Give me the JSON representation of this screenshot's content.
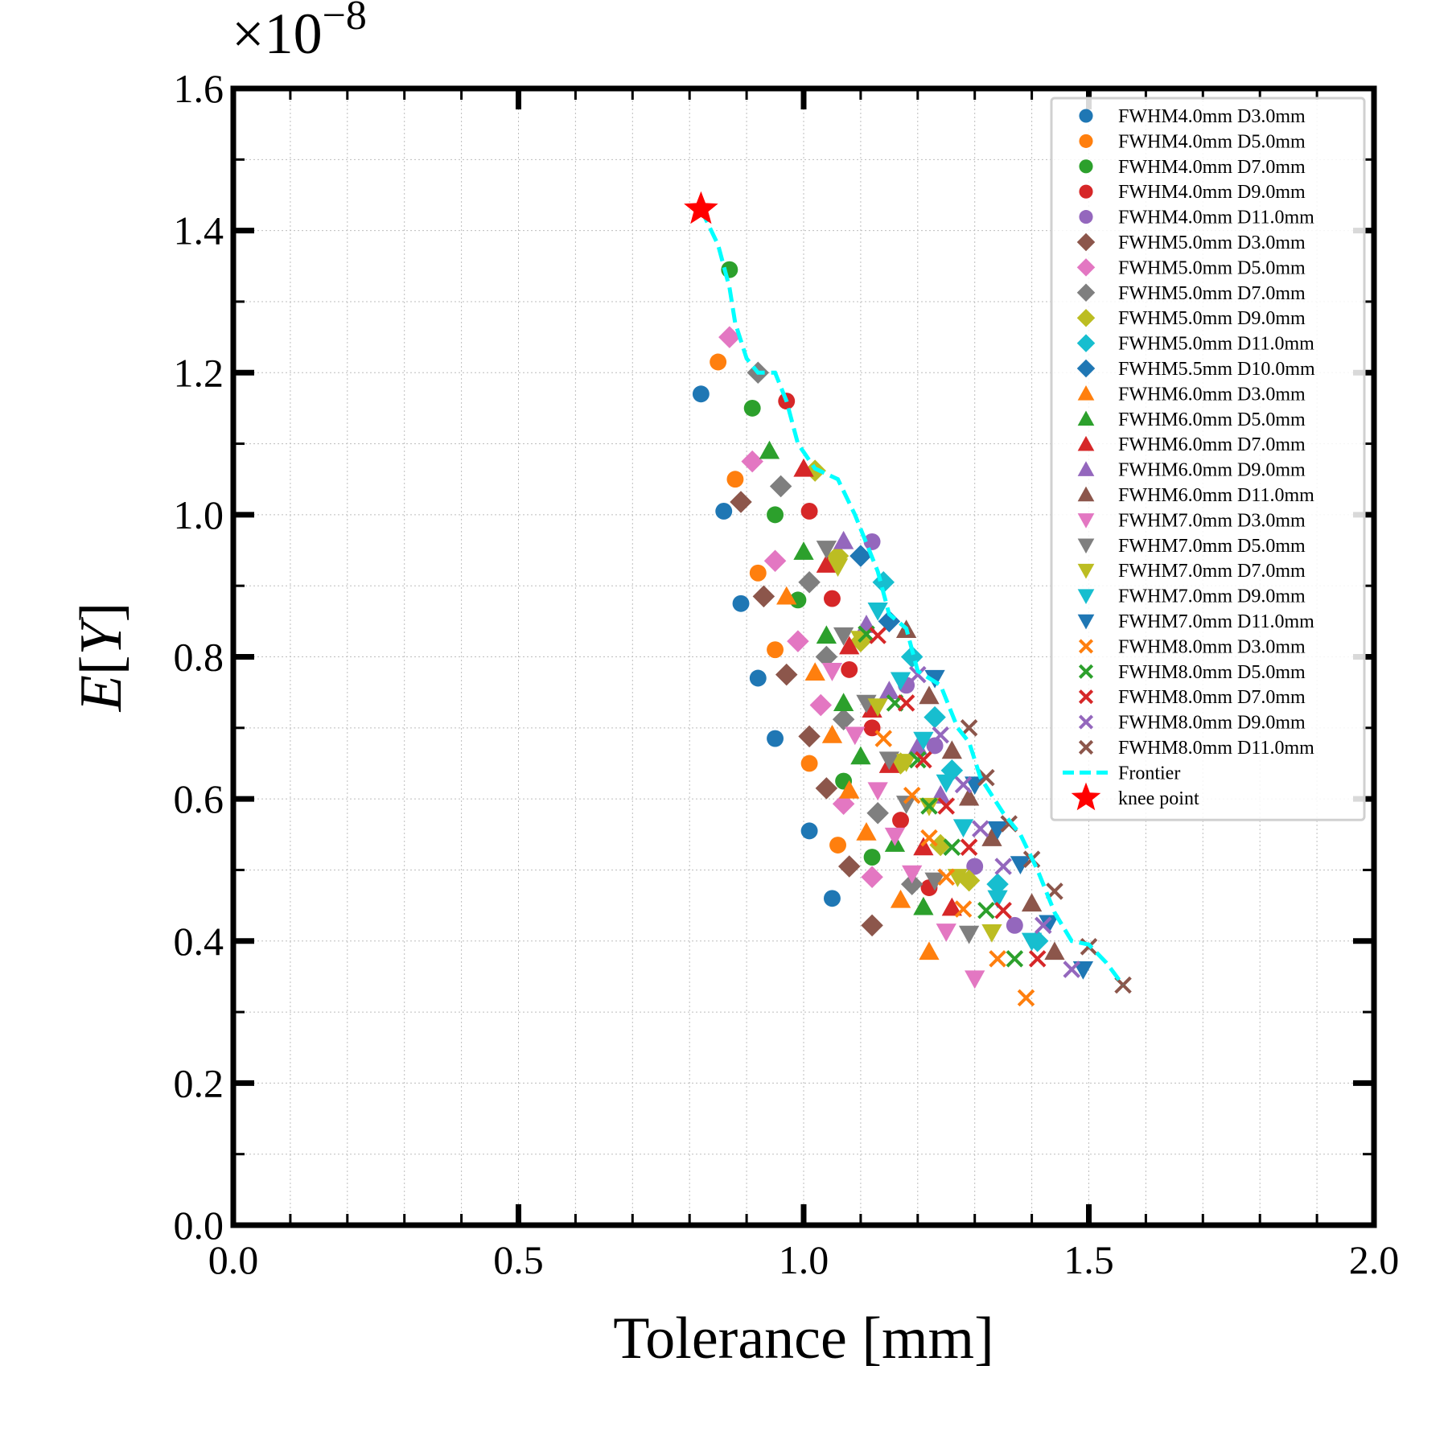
{
  "chart_data": {
    "type": "scatter",
    "title": "",
    "xlabel": "Tolerance [mm]",
    "ylabel": "E[Y]",
    "y_offset_text": {
      "base": "×10",
      "exponent": "−8"
    },
    "xlim": [
      0.0,
      2.0
    ],
    "ylim": [
      0.0,
      1.6
    ],
    "x_ticks": [
      "0.0",
      "0.5",
      "1.0",
      "1.5",
      "2.0"
    ],
    "y_ticks": [
      "0.0",
      "0.2",
      "0.4",
      "0.6",
      "0.8",
      "1.0",
      "1.2",
      "1.4",
      "1.6"
    ],
    "grid": true,
    "legend_position": "top-right",
    "series": [
      {
        "name": "FWHM4.0mm D3.0mm",
        "marker": "circle",
        "color": "#1f77b4",
        "points": [
          [
            0.82,
            1.17
          ],
          [
            0.86,
            1.005
          ],
          [
            0.89,
            0.875
          ],
          [
            0.92,
            0.77
          ],
          [
            0.95,
            0.685
          ],
          [
            1.01,
            0.555
          ],
          [
            1.05,
            0.46
          ]
        ]
      },
      {
        "name": "FWHM4.0mm D5.0mm",
        "marker": "circle",
        "color": "#ff7f0e",
        "points": [
          [
            0.85,
            1.215
          ],
          [
            0.88,
            1.05
          ],
          [
            0.92,
            0.918
          ],
          [
            0.95,
            0.81
          ],
          [
            1.01,
            0.65
          ],
          [
            1.06,
            0.535
          ]
        ]
      },
      {
        "name": "FWHM4.0mm D7.0mm",
        "marker": "circle",
        "color": "#2ca02c",
        "points": [
          [
            0.87,
            1.345
          ],
          [
            0.91,
            1.15
          ],
          [
            0.95,
            1.0
          ],
          [
            0.99,
            0.88
          ],
          [
            1.07,
            0.625
          ],
          [
            1.12,
            0.518
          ]
        ]
      },
      {
        "name": "FWHM4.0mm D9.0mm",
        "marker": "circle",
        "color": "#d62728",
        "points": [
          [
            0.97,
            1.16
          ],
          [
            1.01,
            1.005
          ],
          [
            1.05,
            0.882
          ],
          [
            1.08,
            0.782
          ],
          [
            1.12,
            0.7
          ],
          [
            1.17,
            0.57
          ],
          [
            1.22,
            0.475
          ]
        ]
      },
      {
        "name": "FWHM4.0mm D11.0mm",
        "marker": "circle",
        "color": "#9467bd",
        "points": [
          [
            1.12,
            0.962
          ],
          [
            1.18,
            0.76
          ],
          [
            1.23,
            0.675
          ],
          [
            1.3,
            0.505
          ],
          [
            1.37,
            0.422
          ]
        ]
      },
      {
        "name": "FWHM5.0mm D3.0mm",
        "marker": "diamond",
        "color": "#8c564b",
        "points": [
          [
            0.89,
            1.018
          ],
          [
            0.93,
            0.885
          ],
          [
            0.97,
            0.775
          ],
          [
            1.01,
            0.688
          ],
          [
            1.04,
            0.615
          ],
          [
            1.08,
            0.505
          ],
          [
            1.12,
            0.422
          ]
        ]
      },
      {
        "name": "FWHM5.0mm D5.0mm",
        "marker": "diamond",
        "color": "#e377c2",
        "points": [
          [
            0.87,
            1.25
          ],
          [
            0.91,
            1.075
          ],
          [
            0.95,
            0.935
          ],
          [
            0.99,
            0.822
          ],
          [
            1.03,
            0.732
          ],
          [
            1.07,
            0.593
          ],
          [
            1.12,
            0.49
          ]
        ]
      },
      {
        "name": "FWHM5.0mm D7.0mm",
        "marker": "diamond",
        "color": "#7f7f7f",
        "points": [
          [
            0.92,
            1.2
          ],
          [
            0.96,
            1.04
          ],
          [
            1.01,
            0.905
          ],
          [
            1.04,
            0.8
          ],
          [
            1.07,
            0.712
          ],
          [
            1.13,
            0.58
          ],
          [
            1.19,
            0.48
          ]
        ]
      },
      {
        "name": "FWHM5.0mm D9.0mm",
        "marker": "diamond",
        "color": "#bcbd22",
        "points": [
          [
            1.02,
            1.062
          ],
          [
            1.06,
            0.942
          ],
          [
            1.1,
            0.822
          ],
          [
            1.17,
            0.65
          ],
          [
            1.24,
            0.535
          ],
          [
            1.29,
            0.485
          ]
        ]
      },
      {
        "name": "FWHM5.0mm D11.0mm",
        "marker": "diamond",
        "color": "#17becf",
        "points": [
          [
            1.14,
            0.905
          ],
          [
            1.19,
            0.8
          ],
          [
            1.23,
            0.715
          ],
          [
            1.26,
            0.64
          ],
          [
            1.34,
            0.48
          ],
          [
            1.41,
            0.4
          ]
        ]
      },
      {
        "name": "FWHM5.5mm D10.0mm",
        "marker": "diamond",
        "color": "#1f77b4",
        "points": [
          [
            1.1,
            0.942
          ],
          [
            1.15,
            0.85
          ]
        ]
      },
      {
        "name": "FWHM6.0mm D3.0mm",
        "marker": "triangle-up",
        "color": "#ff7f0e",
        "points": [
          [
            0.97,
            0.885
          ],
          [
            1.02,
            0.778
          ],
          [
            1.05,
            0.69
          ],
          [
            1.08,
            0.612
          ],
          [
            1.11,
            0.553
          ],
          [
            1.17,
            0.458
          ],
          [
            1.22,
            0.385
          ]
        ]
      },
      {
        "name": "FWHM6.0mm D5.0mm",
        "marker": "triangle-up",
        "color": "#2ca02c",
        "points": [
          [
            0.94,
            1.09
          ],
          [
            1.0,
            0.948
          ],
          [
            1.04,
            0.83
          ],
          [
            1.07,
            0.735
          ],
          [
            1.1,
            0.66
          ],
          [
            1.16,
            0.537
          ],
          [
            1.21,
            0.448
          ]
        ]
      },
      {
        "name": "FWHM6.0mm D7.0mm",
        "marker": "triangle-up",
        "color": "#d62728",
        "points": [
          [
            1.0,
            1.065
          ],
          [
            1.04,
            0.93
          ],
          [
            1.08,
            0.815
          ],
          [
            1.12,
            0.726
          ],
          [
            1.15,
            0.648
          ],
          [
            1.21,
            0.532
          ],
          [
            1.26,
            0.447
          ]
        ]
      },
      {
        "name": "FWHM6.0mm D9.0mm",
        "marker": "triangle-up",
        "color": "#9467bd",
        "points": [
          [
            1.07,
            0.963
          ],
          [
            1.11,
            0.845
          ],
          [
            1.15,
            0.752
          ],
          [
            1.2,
            0.673
          ],
          [
            1.24,
            0.605
          ]
        ]
      },
      {
        "name": "FWHM6.0mm D11.0mm",
        "marker": "triangle-up",
        "color": "#8c564b",
        "points": [
          [
            1.18,
            0.838
          ],
          [
            1.22,
            0.745
          ],
          [
            1.26,
            0.668
          ],
          [
            1.29,
            0.602
          ],
          [
            1.33,
            0.545
          ],
          [
            1.4,
            0.453
          ],
          [
            1.44,
            0.385
          ]
        ]
      },
      {
        "name": "FWHM7.0mm D3.0mm",
        "marker": "triangle-down",
        "color": "#e377c2",
        "points": [
          [
            1.05,
            0.78
          ],
          [
            1.09,
            0.69
          ],
          [
            1.13,
            0.612
          ],
          [
            1.16,
            0.548
          ],
          [
            1.19,
            0.495
          ],
          [
            1.25,
            0.413
          ],
          [
            1.3,
            0.347
          ]
        ]
      },
      {
        "name": "FWHM7.0mm D5.0mm",
        "marker": "triangle-down",
        "color": "#7f7f7f",
        "points": [
          [
            1.04,
            0.952
          ],
          [
            1.07,
            0.83
          ],
          [
            1.11,
            0.735
          ],
          [
            1.15,
            0.655
          ],
          [
            1.18,
            0.593
          ],
          [
            1.23,
            0.485
          ],
          [
            1.29,
            0.41
          ]
        ]
      },
      {
        "name": "FWHM7.0mm D7.0mm",
        "marker": "triangle-down",
        "color": "#bcbd22",
        "points": [
          [
            1.06,
            0.927
          ],
          [
            1.1,
            0.825
          ],
          [
            1.13,
            0.73
          ],
          [
            1.18,
            0.652
          ],
          [
            1.22,
            0.59
          ],
          [
            1.27,
            0.49
          ],
          [
            1.33,
            0.412
          ]
        ]
      },
      {
        "name": "FWHM7.0mm D9.0mm",
        "marker": "triangle-down",
        "color": "#17becf",
        "points": [
          [
            1.13,
            0.865
          ],
          [
            1.17,
            0.767
          ],
          [
            1.21,
            0.683
          ],
          [
            1.25,
            0.623
          ],
          [
            1.28,
            0.56
          ],
          [
            1.34,
            0.46
          ],
          [
            1.4,
            0.4
          ]
        ]
      },
      {
        "name": "FWHM7.0mm D11.0mm",
        "marker": "triangle-down",
        "color": "#1f77b4",
        "points": [
          [
            1.23,
            0.77
          ],
          [
            1.3,
            0.62
          ],
          [
            1.34,
            0.557
          ],
          [
            1.38,
            0.508
          ],
          [
            1.43,
            0.425
          ],
          [
            1.49,
            0.36
          ]
        ]
      },
      {
        "name": "FWHM8.0mm D3.0mm",
        "marker": "x",
        "color": "#ff7f0e",
        "points": [
          [
            1.14,
            0.685
          ],
          [
            1.19,
            0.605
          ],
          [
            1.22,
            0.545
          ],
          [
            1.25,
            0.49
          ],
          [
            1.28,
            0.445
          ],
          [
            1.34,
            0.375
          ],
          [
            1.39,
            0.32
          ]
        ]
      },
      {
        "name": "FWHM8.0mm D5.0mm",
        "marker": "x",
        "color": "#2ca02c",
        "points": [
          [
            1.11,
            0.832
          ],
          [
            1.16,
            0.735
          ],
          [
            1.2,
            0.655
          ],
          [
            1.22,
            0.59
          ],
          [
            1.26,
            0.532
          ],
          [
            1.32,
            0.443
          ],
          [
            1.37,
            0.375
          ]
        ]
      },
      {
        "name": "FWHM8.0mm D7.0mm",
        "marker": "x",
        "color": "#d62728",
        "points": [
          [
            1.13,
            0.83
          ],
          [
            1.18,
            0.735
          ],
          [
            1.21,
            0.655
          ],
          [
            1.25,
            0.59
          ],
          [
            1.29,
            0.532
          ],
          [
            1.35,
            0.443
          ],
          [
            1.41,
            0.375
          ]
        ]
      },
      {
        "name": "FWHM8.0mm D9.0mm",
        "marker": "x",
        "color": "#9467bd",
        "points": [
          [
            1.2,
            0.775
          ],
          [
            1.24,
            0.69
          ],
          [
            1.28,
            0.62
          ],
          [
            1.31,
            0.558
          ],
          [
            1.35,
            0.505
          ],
          [
            1.42,
            0.422
          ],
          [
            1.47,
            0.36
          ]
        ]
      },
      {
        "name": "FWHM8.0mm D11.0mm",
        "marker": "x",
        "color": "#8c564b",
        "points": [
          [
            1.29,
            0.7
          ],
          [
            1.32,
            0.63
          ],
          [
            1.36,
            0.565
          ],
          [
            1.4,
            0.515
          ],
          [
            1.44,
            0.47
          ],
          [
            1.5,
            0.392
          ],
          [
            1.56,
            0.338
          ]
        ]
      }
    ],
    "frontier": {
      "name": "Frontier",
      "color": "#00ffff",
      "style": "dashed",
      "points": [
        [
          0.82,
          1.43
        ],
        [
          0.85,
          1.38
        ],
        [
          0.87,
          1.32
        ],
        [
          0.88,
          1.27
        ],
        [
          0.9,
          1.22
        ],
        [
          0.92,
          1.2
        ],
        [
          0.95,
          1.2
        ],
        [
          0.97,
          1.16
        ],
        [
          0.99,
          1.1
        ],
        [
          1.02,
          1.065
        ],
        [
          1.06,
          1.05
        ],
        [
          1.09,
          1.0
        ],
        [
          1.11,
          0.96
        ],
        [
          1.13,
          0.92
        ],
        [
          1.15,
          0.86
        ],
        [
          1.18,
          0.84
        ],
        [
          1.2,
          0.78
        ],
        [
          1.24,
          0.76
        ],
        [
          1.27,
          0.7
        ],
        [
          1.29,
          0.68
        ],
        [
          1.31,
          0.63
        ],
        [
          1.35,
          0.58
        ],
        [
          1.38,
          0.55
        ],
        [
          1.41,
          0.5
        ],
        [
          1.44,
          0.44
        ],
        [
          1.47,
          0.4
        ],
        [
          1.5,
          0.395
        ],
        [
          1.53,
          0.37
        ],
        [
          1.56,
          0.338
        ]
      ]
    },
    "knee_point": {
      "name": "knee point",
      "color": "#ff0000",
      "marker": "star",
      "x": 0.82,
      "y": 1.43
    }
  }
}
